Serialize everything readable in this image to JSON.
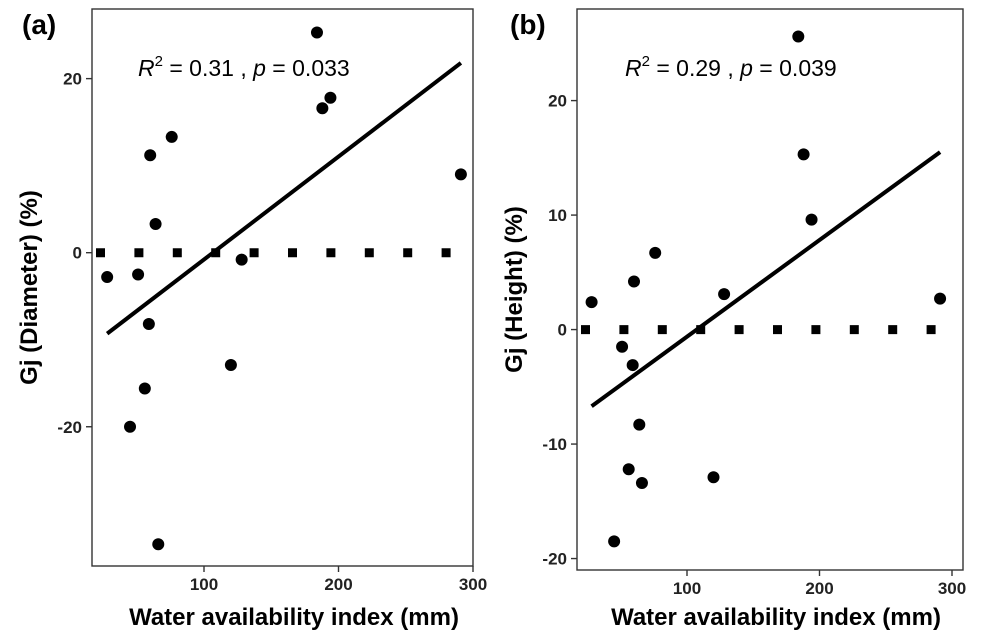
{
  "chart_data": [
    {
      "type": "scatter",
      "panel_label": "(a)",
      "xlabel": "Water availability index (mm)",
      "ylabel": "Gj (Diameter) (%)",
      "xlim": [
        15,
        300
      ],
      "ylim": [
        -36,
        28
      ],
      "xticks": [
        100,
        200,
        300
      ],
      "yticks": [
        20,
        0,
        -20
      ],
      "grid": false,
      "annotation": {
        "r2_label": "R",
        "r2_sup": "2",
        "r2_value": " = 0.31 , ",
        "p_label": "p",
        "p_value": " = 0.033"
      },
      "points": [
        {
          "x": 28,
          "y": -2.8
        },
        {
          "x": 45,
          "y": -20
        },
        {
          "x": 51,
          "y": -2.5
        },
        {
          "x": 56,
          "y": -15.6
        },
        {
          "x": 59,
          "y": -8.2
        },
        {
          "x": 60,
          "y": 11.2
        },
        {
          "x": 64,
          "y": 3.3
        },
        {
          "x": 66,
          "y": -33.5
        },
        {
          "x": 76,
          "y": 13.3
        },
        {
          "x": 120,
          "y": -12.9
        },
        {
          "x": 128,
          "y": -0.8
        },
        {
          "x": 184,
          "y": 25.3
        },
        {
          "x": 188,
          "y": 16.6
        },
        {
          "x": 194,
          "y": 17.8
        },
        {
          "x": 291,
          "y": 9.0
        }
      ],
      "fit_line": {
        "x": [
          28,
          291
        ],
        "y": [
          -9.3,
          21.8
        ]
      },
      "reference_line": {
        "y": 0,
        "style": "dotted"
      }
    },
    {
      "type": "scatter",
      "panel_label": "(b)",
      "xlabel": "Water availability index (mm)",
      "ylabel": "Gj (Height) (%)",
      "xlim": [
        15,
        300
      ],
      "ylim": [
        -21,
        28
      ],
      "xticks": [
        100,
        200,
        300
      ],
      "yticks": [
        20,
        10,
        0,
        -10,
        -20
      ],
      "grid": false,
      "annotation": {
        "r2_label": "R",
        "r2_sup": "2",
        "r2_value": " = 0.29 , ",
        "p_label": "p",
        "p_value": " = 0.039"
      },
      "points": [
        {
          "x": 28,
          "y": 2.4
        },
        {
          "x": 45,
          "y": -18.5
        },
        {
          "x": 51,
          "y": -1.5
        },
        {
          "x": 56,
          "y": -12.2
        },
        {
          "x": 59,
          "y": -3.1
        },
        {
          "x": 60,
          "y": 4.2
        },
        {
          "x": 64,
          "y": -8.3
        },
        {
          "x": 66,
          "y": -13.4
        },
        {
          "x": 76,
          "y": 6.7
        },
        {
          "x": 120,
          "y": -12.9
        },
        {
          "x": 128,
          "y": 3.1
        },
        {
          "x": 184,
          "y": 25.6
        },
        {
          "x": 188,
          "y": 15.3
        },
        {
          "x": 194,
          "y": 9.6
        },
        {
          "x": 291,
          "y": 2.7
        }
      ],
      "fit_line": {
        "x": [
          28,
          291
        ],
        "y": [
          -6.7,
          15.5
        ]
      },
      "reference_line": {
        "y": 0,
        "style": "dotted"
      }
    }
  ]
}
